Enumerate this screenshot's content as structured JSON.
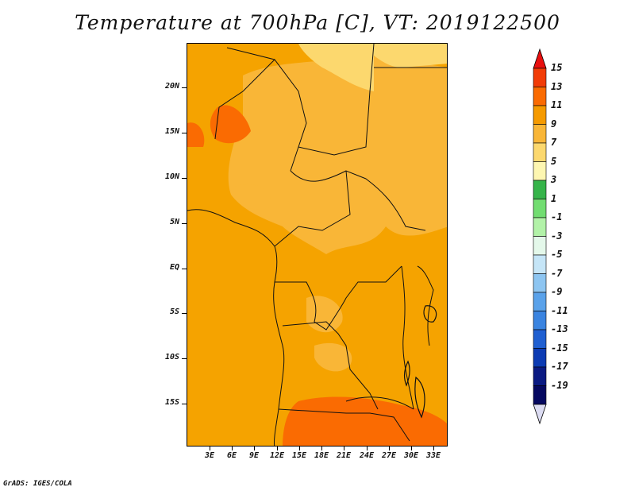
{
  "title": "Temperature at 700hPa [C], VT: 2019122500",
  "footer": "GrADS: IGES/COLA",
  "lat_labels": [
    "20N",
    "15N",
    "10N",
    "5N",
    "EQ",
    "5S",
    "10S",
    "15S"
  ],
  "lon_labels": [
    "3E",
    "6E",
    "9E",
    "12E",
    "15E",
    "18E",
    "21E",
    "24E",
    "27E",
    "30E",
    "33E"
  ],
  "colorbar": {
    "labels": [
      "15",
      "13",
      "11",
      "9",
      "7",
      "5",
      "3",
      "1",
      "-1",
      "-3",
      "-5",
      "-7",
      "-9",
      "-11",
      "-13",
      "-15",
      "-17",
      "-19"
    ],
    "colors": [
      "#e8100f",
      "#f23c07",
      "#fa6b02",
      "#f59a00",
      "#f9b637",
      "#fcd86e",
      "#fdf6b1",
      "#36b44a",
      "#72dd71",
      "#b2f2a8",
      "#e4f8ea",
      "#c5e5f7",
      "#8dc5f1",
      "#5aa2ea",
      "#3a84e0",
      "#1f5fd1",
      "#0c3bb3",
      "#0a1a82",
      "#050860"
    ],
    "end_colors": {
      "top": "#e8100f",
      "bottom": "#dcdcf2"
    }
  }
}
